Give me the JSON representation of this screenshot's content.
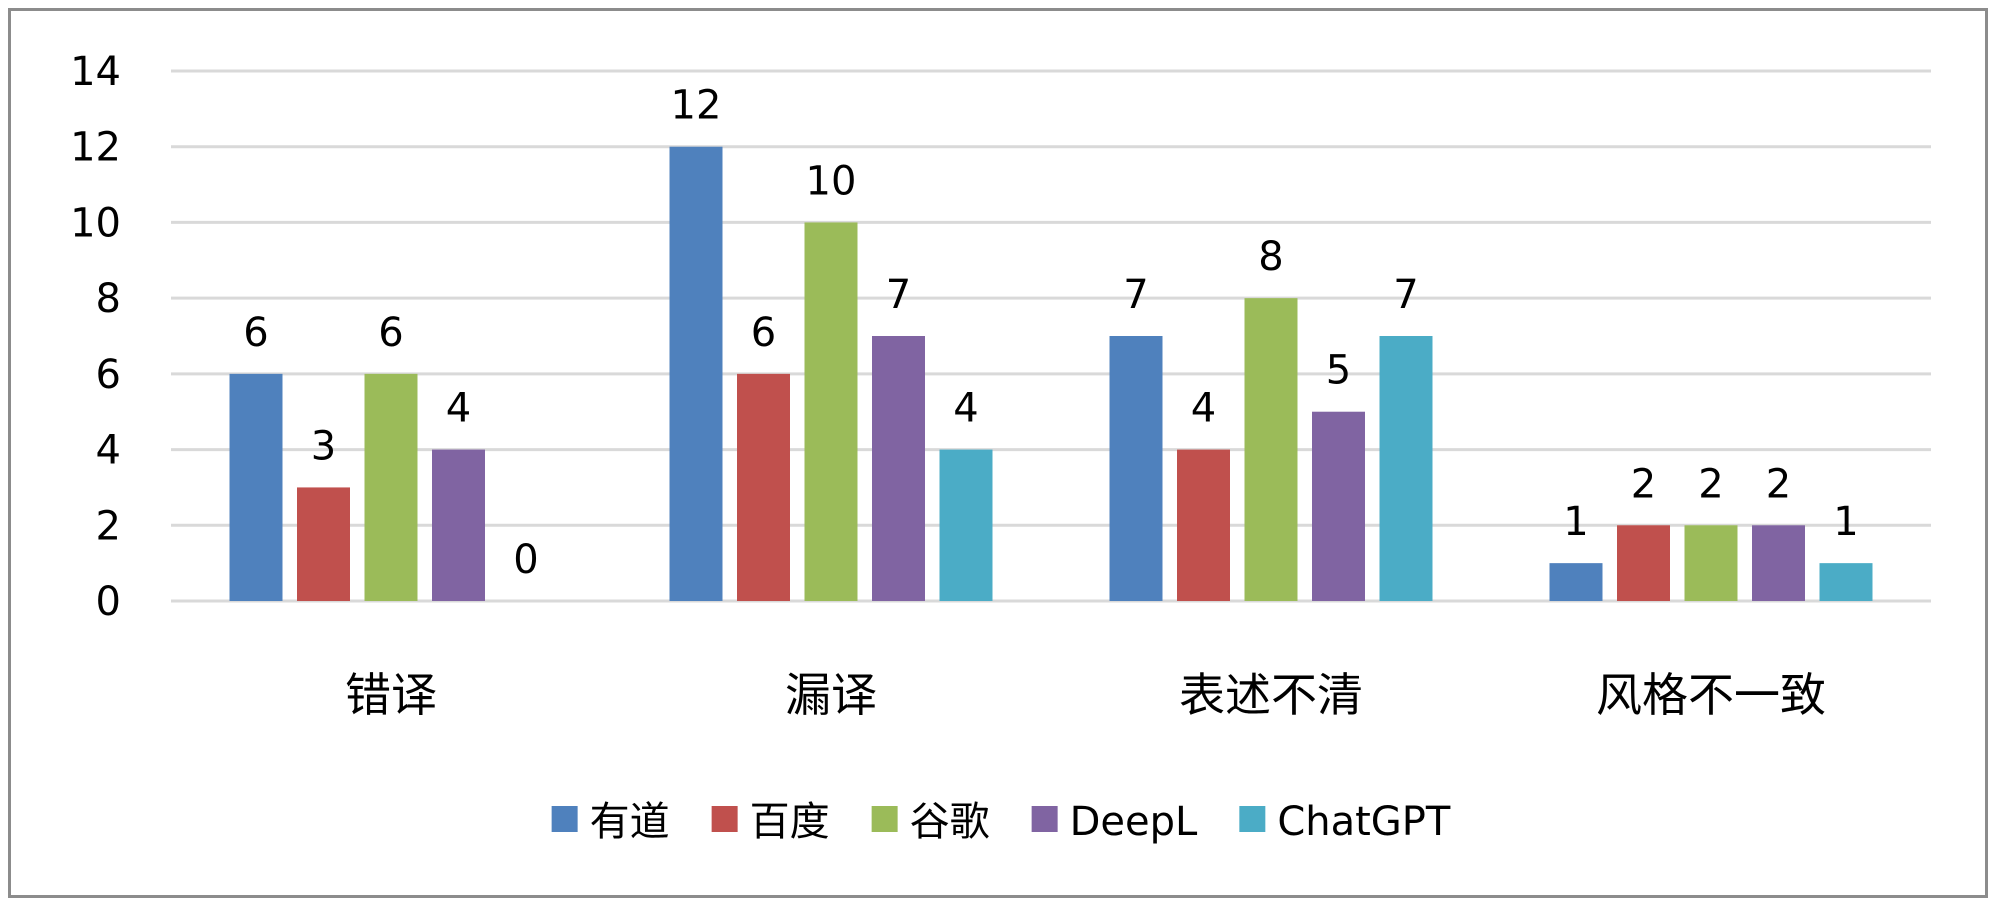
{
  "chart_data": {
    "type": "bar",
    "categories": [
      "错译",
      "漏译",
      "表述不清",
      "风格不一致"
    ],
    "series": [
      {
        "name": "有道",
        "color": "#4f81bd",
        "values": [
          6,
          12,
          7,
          1
        ]
      },
      {
        "name": "百度",
        "color": "#c0504d",
        "values": [
          3,
          6,
          4,
          2
        ]
      },
      {
        "name": "谷歌",
        "color": "#9bbb59",
        "values": [
          6,
          10,
          8,
          2
        ]
      },
      {
        "name": "DeepL",
        "color": "#8064a2",
        "values": [
          4,
          7,
          5,
          2
        ]
      },
      {
        "name": "ChatGPT",
        "color": "#4bacc6",
        "values": [
          0,
          4,
          7,
          1
        ]
      }
    ],
    "ylim": [
      0,
      14
    ],
    "yticks": [
      0,
      2,
      4,
      6,
      8,
      10,
      12,
      14
    ],
    "grid": true,
    "data_labels": true,
    "legend_position": "bottom",
    "gridline_color": "#d9d9d9"
  }
}
